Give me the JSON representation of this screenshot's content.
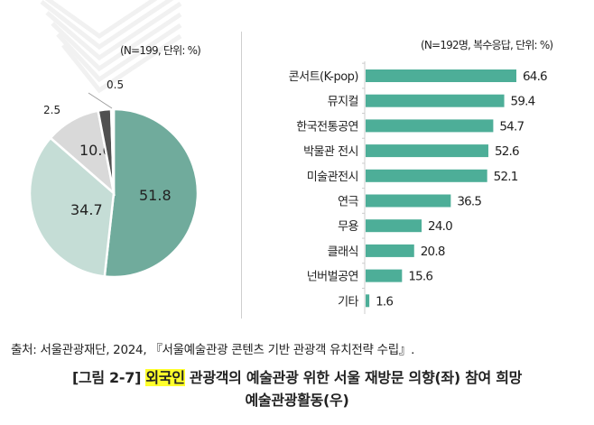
{
  "chart_data": [
    {
      "type": "pie",
      "note": "(N=199, 단위: %)",
      "values": [
        51.8,
        34.7,
        10.6,
        2.5,
        0.5
      ],
      "labels": [
        "51.8",
        "34.7",
        "10.6",
        "2.5",
        "0.5"
      ],
      "colors": [
        "#70ab9c",
        "#c5ddd6",
        "#d9d9d9",
        "#505050",
        "#ffffff"
      ]
    },
    {
      "type": "bar",
      "orientation": "horizontal",
      "note": "(N=192명, 복수응답, 단위: %)",
      "categories": [
        "콘서트(K-pop)",
        "뮤지컬",
        "한국전통공연",
        "박물관 전시",
        "미술관전시",
        "연극",
        "무용",
        "클래식",
        "넌버벌공연",
        "기타"
      ],
      "values": [
        64.6,
        59.4,
        54.7,
        52.6,
        52.1,
        36.5,
        24.0,
        20.8,
        15.6,
        1.6
      ],
      "value_labels": [
        "64.6",
        "59.4",
        "54.7",
        "52.6",
        "52.1",
        "36.5",
        "24.0",
        "20.8",
        "15.6",
        "1.6"
      ],
      "color": "#4dae98"
    }
  ],
  "source": "출처: 서울관광재단, 2024, 『서울예술관광 콘텐츠 기반 관광객 유치전략 수립』.",
  "caption": {
    "prefix": "[그림 2-7] ",
    "highlight": "외국인",
    "line1_rest": " 관광객의 예술관광 위한 서울 재방문 의향(좌) 참여 희망",
    "line2": "예술관광활동(우)"
  }
}
